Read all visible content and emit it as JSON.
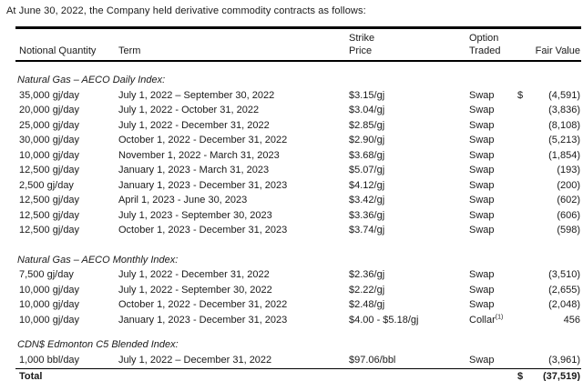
{
  "intro": "At June 30, 2022, the Company held derivative commodity contracts as follows:",
  "table": {
    "headers": {
      "notional": "Notional Quantity",
      "term": "Term",
      "strike_line1": "Strike",
      "strike_line2": "Price",
      "option_line1": "Option",
      "option_line2": "Traded",
      "fair_value": "Fair Value"
    },
    "sections": [
      {
        "title": "Natural Gas – AECO Daily Index:",
        "css": "section-daily",
        "rows": [
          {
            "notional": "35,000 gj/day",
            "term": "July 1, 2022 – September 30, 2022",
            "strike": "$3.15/gj",
            "option": "Swap",
            "option_sup": "",
            "currency": "$",
            "fair_value": "(4,591)"
          },
          {
            "notional": "20,000 gj/day",
            "term": "July 1, 2022 - October 31, 2022",
            "strike": "$3.04/gj",
            "option": "Swap",
            "option_sup": "",
            "currency": "",
            "fair_value": "(3,836)"
          },
          {
            "notional": "25,000 gj/day",
            "term": "July 1, 2022 - December 31, 2022",
            "strike": "$2.85/gj",
            "option": "Swap",
            "option_sup": "",
            "currency": "",
            "fair_value": "(8,108)"
          },
          {
            "notional": "30,000 gj/day",
            "term": "October 1, 2022 - December 31, 2022",
            "strike": "$2.90/gj",
            "option": "Swap",
            "option_sup": "",
            "currency": "",
            "fair_value": "(5,213)"
          },
          {
            "notional": "10,000 gj/day",
            "term": "November 1, 2022 - March 31, 2023",
            "strike": "$3.68/gj",
            "option": "Swap",
            "option_sup": "",
            "currency": "",
            "fair_value": "(1,854)"
          },
          {
            "notional": "12,500 gj/day",
            "term": "January 1, 2023 - March 31, 2023",
            "strike": "$5.07/gj",
            "option": "Swap",
            "option_sup": "",
            "currency": "",
            "fair_value": "(193)"
          },
          {
            "notional": "2,500 gj/day",
            "term": "January 1, 2023 - December 31, 2023",
            "strike": "$4.12/gj",
            "option": "Swap",
            "option_sup": "",
            "currency": "",
            "fair_value": "(200)"
          },
          {
            "notional": "12,500 gj/day",
            "term": "April 1, 2023 - June 30, 2023",
            "strike": "$3.42/gj",
            "option": "Swap",
            "option_sup": "",
            "currency": "",
            "fair_value": "(602)"
          },
          {
            "notional": "12,500 gj/day",
            "term": "July 1, 2023 - September 30, 2023",
            "strike": "$3.36/gj",
            "option": "Swap",
            "option_sup": "",
            "currency": "",
            "fair_value": "(606)"
          },
          {
            "notional": "12,500 gj/day",
            "term": "October 1, 2023 - December 31, 2023",
            "strike": "$3.74/gj",
            "option": "Swap",
            "option_sup": "",
            "currency": "",
            "fair_value": "(598)"
          }
        ]
      },
      {
        "title": "Natural Gas – AECO Monthly Index:",
        "css": "section-monthly",
        "rows": [
          {
            "notional": "7,500 gj/day",
            "term": "July 1, 2022 - December 31, 2022",
            "strike": "$2.36/gj",
            "option": "Swap",
            "option_sup": "",
            "currency": "",
            "fair_value": "(3,510)"
          },
          {
            "notional": "10,000 gj/day",
            "term": "July 1, 2022 - September 30, 2022",
            "strike": "$2.22/gj",
            "option": "Swap",
            "option_sup": "",
            "currency": "",
            "fair_value": "(2,655)"
          },
          {
            "notional": "10,000 gj/day",
            "term": "October 1, 2022 - December 31, 2022",
            "strike": "$2.48/gj",
            "option": "Swap",
            "option_sup": "",
            "currency": "",
            "fair_value": "(2,048)"
          },
          {
            "notional": "10,000 gj/day",
            "term": "January 1, 2023 - December 31, 2023",
            "strike": "$4.00 - $5.18/gj",
            "option": "Collar",
            "option_sup": "(1)",
            "currency": "",
            "fair_value": "456"
          }
        ]
      },
      {
        "title": "CDN$ Edmonton C5 Blended Index:",
        "css": "section-cdn",
        "rows": [
          {
            "notional": "1,000 bbl/day",
            "term": "July 1, 2022 – December 31, 2022",
            "strike": "$97.06/bbl",
            "option": "Swap",
            "option_sup": "",
            "currency": "",
            "fair_value": "(3,961)"
          }
        ]
      }
    ],
    "total": {
      "label": "Total",
      "currency": "$",
      "fair_value": "(37,519)"
    }
  }
}
